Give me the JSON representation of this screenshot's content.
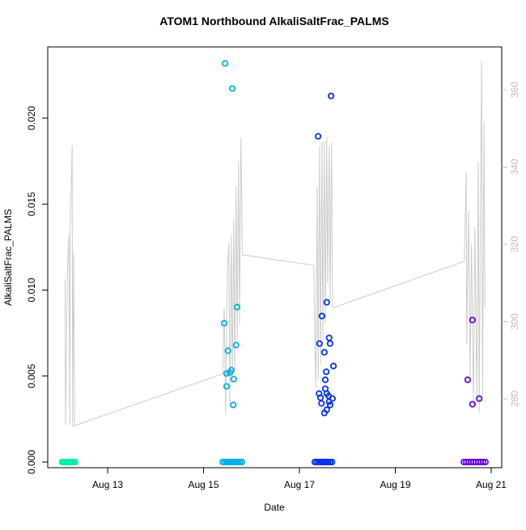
{
  "chart_data": {
    "type": "scatter",
    "title": "ATOM1 Northbound AlkaliSaltFrac_PALMS",
    "x_label": "Date",
    "y_label": "AlkaliSaltFrac_PALMS",
    "xlim": [
      11.75,
      21.22
    ],
    "xticks": [
      {
        "value": 13,
        "label": "Aug 13"
      },
      {
        "value": 15,
        "label": "Aug 15"
      },
      {
        "value": 17,
        "label": "Aug 17"
      },
      {
        "value": 19,
        "label": "Aug 19"
      },
      {
        "value": 21,
        "label": "Aug 21"
      }
    ],
    "ylim": [
      -0.00033,
      0.02414
    ],
    "yticks": [
      {
        "value": 0,
        "label": "0.000"
      },
      {
        "value": 0.005,
        "label": "0.005"
      },
      {
        "value": 0.01,
        "label": "0.010"
      },
      {
        "value": 0.015,
        "label": "0.015"
      },
      {
        "value": 0.02,
        "label": "0.020"
      }
    ],
    "y2lim": [
      262.2,
      371.1
    ],
    "y2ticks": [
      280,
      300,
      320,
      340,
      360
    ],
    "y2_color": "#bbbbbb",
    "series": [
      {
        "type": "line",
        "axis": "y2",
        "color": "#cccccc",
        "x": [
          12.11,
          12.12,
          12.16,
          12.19,
          12.21,
          12.22,
          12.26,
          12.27,
          12.29,
          12.31,
          12.36,
          15.4,
          15.43,
          15.46,
          15.5,
          15.53,
          15.55,
          15.58,
          15.6,
          15.63,
          15.65,
          15.68,
          15.7,
          15.73,
          15.75,
          15.78,
          15.8,
          15.81,
          17.3,
          17.34,
          17.37,
          17.39,
          17.42,
          17.44,
          17.47,
          17.49,
          17.52,
          17.54,
          17.57,
          17.59,
          17.62,
          17.64,
          17.67,
          17.69,
          17.73,
          20.44,
          20.48,
          20.49,
          20.53,
          20.56,
          20.59,
          20.63,
          20.66,
          20.7,
          20.73,
          20.75,
          20.78,
          20.8,
          20.82,
          20.85,
          20.87
        ],
        "values": [
          311.0,
          273.3,
          313.1,
          322.5,
          273.3,
          325.0,
          345.5,
          272.9,
          317.9,
          272.9,
          273.3,
          286.5,
          303.7,
          276.0,
          314.1,
          320.4,
          278.5,
          322.5,
          284.8,
          326.7,
          286.9,
          335.1,
          295.3,
          341.4,
          299.5,
          347.6,
          328.8,
          317.3,
          314.6,
          282.7,
          335.1,
          284.8,
          345.5,
          289.0,
          346.6,
          295.3,
          346.6,
          299.5,
          347.6,
          309.9,
          345.5,
          305.8,
          346.6,
          303.7,
          303.7,
          315.6,
          338.8,
          294.2,
          328.8,
          285.9,
          320.4,
          278.5,
          324.6,
          279.6,
          341.4,
          276.4,
          335.1,
          367.6,
          280.6,
          351.8,
          303.7
        ]
      },
      {
        "color": "#00f0a8",
        "x": [
          12.05,
          12.08,
          12.11,
          12.14,
          12.17,
          12.2,
          12.23,
          12.26,
          12.29,
          12.32
        ],
        "values": [
          0,
          0,
          0,
          0,
          0,
          0,
          0,
          0,
          0,
          0
        ]
      },
      {
        "color": "#00b0e8",
        "x": [
          15.4,
          15.44,
          15.48,
          15.52,
          15.56,
          15.6,
          15.64,
          15.68,
          15.72,
          15.76,
          15.8,
          15.43,
          15.7,
          15.68,
          15.51,
          15.58,
          15.55,
          15.48,
          15.63,
          15.48,
          15.62,
          15.6,
          15.45
        ],
        "values": [
          0,
          0,
          0,
          0,
          0,
          0,
          0,
          0,
          0,
          0,
          0,
          0.00807,
          0.00901,
          0.0068,
          0.00647,
          0.00534,
          0.0052,
          0.00515,
          0.00482,
          0.0044,
          0.00332,
          0.02172,
          0.02318
        ]
      },
      {
        "color": "#0033f0",
        "x": [
          17.32,
          17.36,
          17.4,
          17.44,
          17.48,
          17.52,
          17.56,
          17.6,
          17.64,
          17.68,
          17.39,
          17.66,
          17.57,
          17.47,
          17.42,
          17.62,
          17.64,
          17.52,
          17.56,
          17.71,
          17.54,
          17.54,
          17.41,
          17.57,
          17.44,
          17.61,
          17.62,
          17.69,
          17.46,
          17.64,
          17.57,
          17.52
        ],
        "values": [
          0,
          0,
          0,
          0,
          0,
          0,
          0,
          0,
          0,
          0,
          0.01894,
          0.02129,
          0.00929,
          0.00849,
          0.00689,
          0.00722,
          0.00689,
          0.00638,
          0.00525,
          0.00558,
          0.00478,
          0.00426,
          0.00398,
          0.00398,
          0.00374,
          0.00384,
          0.00351,
          0.00369,
          0.00341,
          0.00332,
          0.00304,
          0.00285
        ]
      },
      {
        "color": "#6600e8",
        "x": [
          20.43,
          20.48,
          20.53,
          20.58,
          20.63,
          20.68,
          20.73,
          20.78,
          20.83,
          20.88,
          20.61,
          20.51,
          20.75,
          20.61
        ],
        "values": [
          0,
          0,
          0,
          0,
          0,
          0,
          0,
          0,
          0,
          0,
          0.00826,
          0.00478,
          0.00369,
          0.00336
        ]
      }
    ]
  }
}
